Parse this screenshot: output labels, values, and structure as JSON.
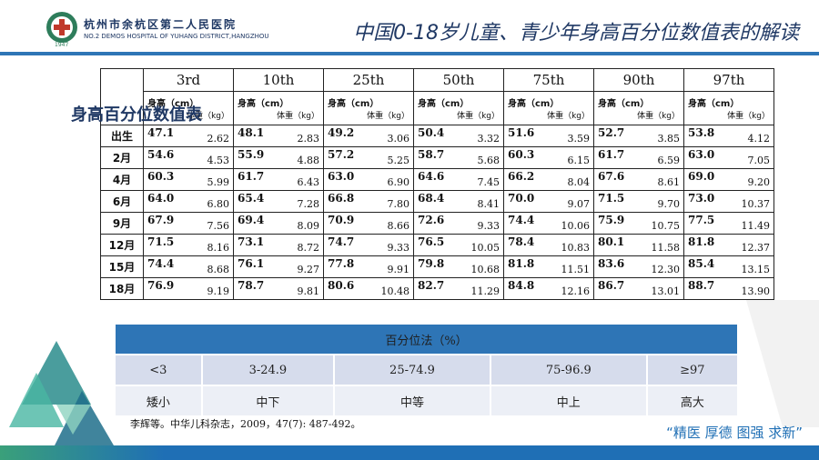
{
  "header": {
    "hospital_name": "杭州市余杭区第二人民医院",
    "hospital_name_en": "NO.2 DEMOS HOSPITAL OF YUHANG DISTRICT,HANGZHOU",
    "logo_year": "1947",
    "title": "中国0-18岁儿童、青少年身高百分位数值表的解读"
  },
  "overlay_label": "身高百分位数值表",
  "table": {
    "columns": [
      "3rd",
      "10th",
      "25th",
      "50th",
      "75th",
      "90th",
      "97th"
    ],
    "subheaders": [
      {
        "height": "身高（cm）",
        "weight": "体重（kg）"
      },
      {
        "height": "身高（cm）",
        "weight": "体重（kg）"
      },
      {
        "height": "身高（cm）",
        "weight": "体重（kg）"
      },
      {
        "height": "身高（cm）",
        "weight": "体重（kg）"
      },
      {
        "height": "身高（cm）",
        "weight": "体重（kg）"
      },
      {
        "height": "身高（cm）",
        "weight": "体重（kg）"
      },
      {
        "height": "身高（cm）",
        "weight": "体重（kg）"
      }
    ],
    "rows": [
      {
        "age": "出生",
        "cells": [
          [
            "47.1",
            "2.62"
          ],
          [
            "48.1",
            "2.83"
          ],
          [
            "49.2",
            "3.06"
          ],
          [
            "50.4",
            "3.32"
          ],
          [
            "51.6",
            "3.59"
          ],
          [
            "52.7",
            "3.85"
          ],
          [
            "53.8",
            "4.12"
          ]
        ]
      },
      {
        "age": "2月",
        "cells": [
          [
            "54.6",
            "4.53"
          ],
          [
            "55.9",
            "4.88"
          ],
          [
            "57.2",
            "5.25"
          ],
          [
            "58.7",
            "5.68"
          ],
          [
            "60.3",
            "6.15"
          ],
          [
            "61.7",
            "6.59"
          ],
          [
            "63.0",
            "7.05"
          ]
        ]
      },
      {
        "age": "4月",
        "cells": [
          [
            "60.3",
            "5.99"
          ],
          [
            "61.7",
            "6.43"
          ],
          [
            "63.0",
            "6.90"
          ],
          [
            "64.6",
            "7.45"
          ],
          [
            "66.2",
            "8.04"
          ],
          [
            "67.6",
            "8.61"
          ],
          [
            "69.0",
            "9.20"
          ]
        ]
      },
      {
        "age": "6月",
        "cells": [
          [
            "64.0",
            "6.80"
          ],
          [
            "65.4",
            "7.28"
          ],
          [
            "66.8",
            "7.80"
          ],
          [
            "68.4",
            "8.41"
          ],
          [
            "70.0",
            "9.07"
          ],
          [
            "71.5",
            "9.70"
          ],
          [
            "73.0",
            "10.37"
          ]
        ]
      },
      {
        "age": "9月",
        "cells": [
          [
            "67.9",
            "7.56"
          ],
          [
            "69.4",
            "8.09"
          ],
          [
            "70.9",
            "8.66"
          ],
          [
            "72.6",
            "9.33"
          ],
          [
            "74.4",
            "10.06"
          ],
          [
            "75.9",
            "10.75"
          ],
          [
            "77.5",
            "11.49"
          ]
        ]
      },
      {
        "age": "12月",
        "cells": [
          [
            "71.5",
            "8.16"
          ],
          [
            "73.1",
            "8.72"
          ],
          [
            "74.7",
            "9.33"
          ],
          [
            "76.5",
            "10.05"
          ],
          [
            "78.4",
            "10.83"
          ],
          [
            "80.1",
            "11.58"
          ],
          [
            "81.8",
            "12.37"
          ]
        ]
      },
      {
        "age": "15月",
        "cells": [
          [
            "74.4",
            "8.68"
          ],
          [
            "76.1",
            "9.27"
          ],
          [
            "77.8",
            "9.91"
          ],
          [
            "79.8",
            "10.68"
          ],
          [
            "81.8",
            "11.51"
          ],
          [
            "83.6",
            "12.30"
          ],
          [
            "85.4",
            "13.15"
          ]
        ]
      },
      {
        "age": "18月",
        "cells": [
          [
            "76.9",
            "9.19"
          ],
          [
            "78.7",
            "9.81"
          ],
          [
            "80.6",
            "10.48"
          ],
          [
            "82.7",
            "11.29"
          ],
          [
            "84.8",
            "12.16"
          ],
          [
            "86.7",
            "13.01"
          ],
          [
            "88.7",
            "13.90"
          ]
        ]
      }
    ]
  },
  "percentile_table": {
    "title": "百分位法（%）",
    "ranges": [
      "<3",
      "3-24.9",
      "25-74.9",
      "75-96.9",
      "≥97"
    ],
    "grades": [
      "矮小",
      "中下",
      "中等",
      "中上",
      "高大"
    ]
  },
  "citation": "李辉等。中华儿科杂志，2009，47(7): 487-492。",
  "slogan": "“精医 厚德 图强 求新”"
}
